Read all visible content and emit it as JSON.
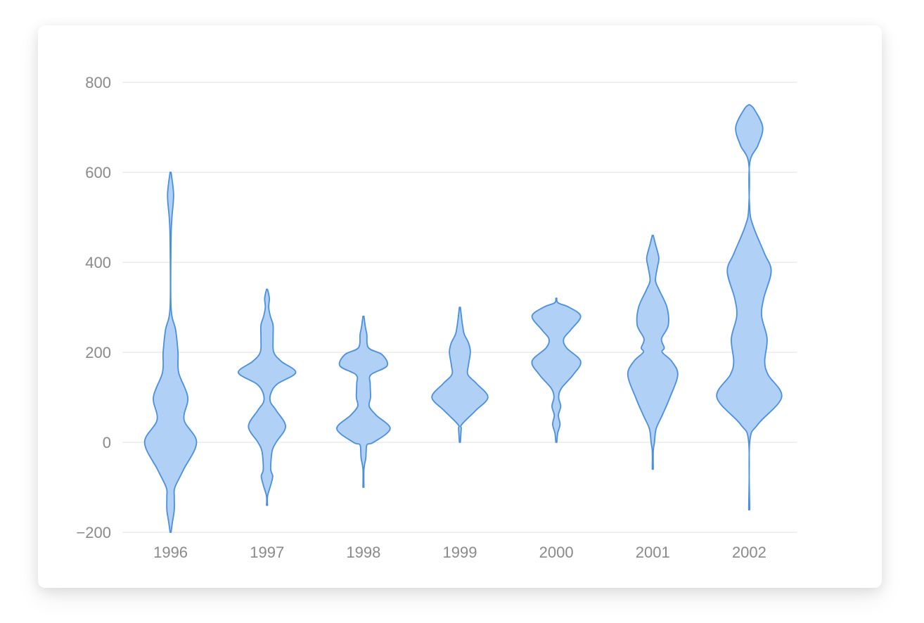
{
  "chart_data": {
    "type": "violin",
    "x_categories": [
      "1996",
      "1997",
      "1998",
      "1999",
      "2000",
      "2001",
      "2002"
    ],
    "y_ticks": [
      "800",
      "600",
      "400",
      "200",
      "0",
      "−200"
    ],
    "y_tick_values": [
      800,
      600,
      400,
      200,
      0,
      -200
    ],
    "ylim": [
      -200,
      800
    ],
    "grid": true,
    "colors": {
      "fill": "#b0d0f6",
      "stroke": "#4a8fe0",
      "grid": "#e8e8e8",
      "tick_text": "#8a8a8a"
    },
    "series": [
      {
        "category": "1996",
        "min": -200,
        "max": 600,
        "profile": [
          [
            -200,
            0.0
          ],
          [
            -180,
            0.05
          ],
          [
            -150,
            0.11
          ],
          [
            -120,
            0.11
          ],
          [
            -100,
            0.13
          ],
          [
            -60,
            0.39
          ],
          [
            0,
            0.77
          ],
          [
            50,
            0.4
          ],
          [
            100,
            0.51
          ],
          [
            155,
            0.24
          ],
          [
            200,
            0.22
          ],
          [
            250,
            0.15
          ],
          [
            300,
            0.0
          ],
          [
            450,
            0.0
          ],
          [
            500,
            0.04
          ],
          [
            550,
            0.09
          ],
          [
            600,
            0.0
          ]
        ]
      },
      {
        "category": "1997",
        "min": -140,
        "max": 340,
        "profile": [
          [
            -140,
            0.0
          ],
          [
            -120,
            0.0
          ],
          [
            -95,
            0.11
          ],
          [
            -75,
            0.17
          ],
          [
            -60,
            0.11
          ],
          [
            -20,
            0.15
          ],
          [
            0,
            0.27
          ],
          [
            35,
            0.55
          ],
          [
            70,
            0.28
          ],
          [
            90,
            0.1
          ],
          [
            110,
            0.12
          ],
          [
            130,
            0.31
          ],
          [
            155,
            0.85
          ],
          [
            180,
            0.42
          ],
          [
            200,
            0.2
          ],
          [
            230,
            0.18
          ],
          [
            260,
            0.18
          ],
          [
            280,
            0.1
          ],
          [
            300,
            0.05
          ],
          [
            320,
            0.07
          ],
          [
            340,
            0.0
          ]
        ]
      },
      {
        "category": "1998",
        "min": -100,
        "max": 280,
        "profile": [
          [
            -100,
            0.0
          ],
          [
            -60,
            0.0
          ],
          [
            -35,
            0.07
          ],
          [
            -20,
            0.08
          ],
          [
            -5,
            0.11
          ],
          [
            0,
            0.3
          ],
          [
            30,
            0.79
          ],
          [
            60,
            0.38
          ],
          [
            80,
            0.17
          ],
          [
            100,
            0.21
          ],
          [
            130,
            0.2
          ],
          [
            150,
            0.22
          ],
          [
            170,
            0.7
          ],
          [
            195,
            0.55
          ],
          [
            210,
            0.15
          ],
          [
            240,
            0.1
          ],
          [
            255,
            0.06
          ],
          [
            280,
            0.0
          ]
        ]
      },
      {
        "category": "1999",
        "min": 0,
        "max": 300,
        "profile": [
          [
            0,
            0.0
          ],
          [
            30,
            0.04
          ],
          [
            40,
            0.06
          ],
          [
            70,
            0.46
          ],
          [
            100,
            0.83
          ],
          [
            130,
            0.5
          ],
          [
            150,
            0.24
          ],
          [
            170,
            0.25
          ],
          [
            200,
            0.31
          ],
          [
            220,
            0.26
          ],
          [
            240,
            0.13
          ],
          [
            255,
            0.09
          ],
          [
            270,
            0.06
          ],
          [
            300,
            0.0
          ]
        ]
      },
      {
        "category": "2000",
        "min": 0,
        "max": 320,
        "profile": [
          [
            0,
            0.0
          ],
          [
            20,
            0.04
          ],
          [
            40,
            0.11
          ],
          [
            60,
            0.06
          ],
          [
            80,
            0.13
          ],
          [
            100,
            0.07
          ],
          [
            120,
            0.15
          ],
          [
            150,
            0.5
          ],
          [
            180,
            0.72
          ],
          [
            210,
            0.3
          ],
          [
            230,
            0.22
          ],
          [
            250,
            0.43
          ],
          [
            280,
            0.72
          ],
          [
            300,
            0.38
          ],
          [
            310,
            0.05
          ],
          [
            320,
            0.0
          ]
        ]
      },
      {
        "category": "2001",
        "min": -60,
        "max": 460,
        "profile": [
          [
            -60,
            0.0
          ],
          [
            -20,
            0.0
          ],
          [
            0,
            0.05
          ],
          [
            30,
            0.1
          ],
          [
            60,
            0.28
          ],
          [
            100,
            0.51
          ],
          [
            150,
            0.74
          ],
          [
            180,
            0.56
          ],
          [
            200,
            0.28
          ],
          [
            210,
            0.34
          ],
          [
            230,
            0.26
          ],
          [
            260,
            0.46
          ],
          [
            300,
            0.42
          ],
          [
            340,
            0.18
          ],
          [
            360,
            0.08
          ],
          [
            390,
            0.14
          ],
          [
            410,
            0.18
          ],
          [
            440,
            0.08
          ],
          [
            460,
            0.0
          ]
        ]
      },
      {
        "category": "2002",
        "min": -150,
        "max": 750,
        "profile": [
          [
            -150,
            0.0
          ],
          [
            0,
            0.0
          ],
          [
            40,
            0.26
          ],
          [
            100,
            0.96
          ],
          [
            150,
            0.56
          ],
          [
            180,
            0.46
          ],
          [
            230,
            0.53
          ],
          [
            280,
            0.37
          ],
          [
            320,
            0.43
          ],
          [
            380,
            0.65
          ],
          [
            420,
            0.45
          ],
          [
            480,
            0.12
          ],
          [
            520,
            0.0
          ],
          [
            620,
            0.0
          ],
          [
            660,
            0.26
          ],
          [
            700,
            0.4
          ],
          [
            740,
            0.15
          ],
          [
            750,
            0.0
          ]
        ]
      }
    ]
  }
}
